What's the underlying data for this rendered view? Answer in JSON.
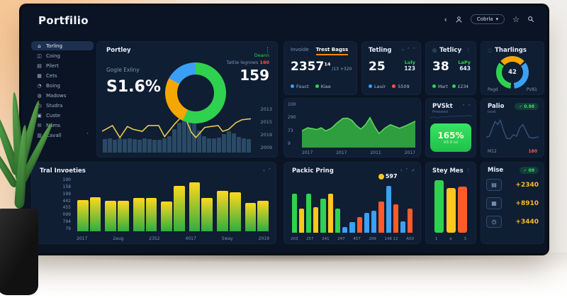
{
  "palette": {
    "green": "#2fd24e",
    "yellow": "#ffc61c",
    "orange": "#ff5a2b",
    "blue": "#3aa0f5",
    "red": "#ff5148",
    "badge_green": "#2ee05c",
    "line_yellow": "#e8c84d",
    "area_green": "#2e9e3f"
  },
  "header": {
    "title": "Portfilio",
    "back_icon": "‹",
    "dropdown_label": "Cobrla",
    "dropdown_caret": "▾"
  },
  "sidebar": {
    "items": [
      {
        "label": "Torling",
        "glyph": "⌂"
      },
      {
        "label": "Coing",
        "glyph": "◫"
      },
      {
        "label": "Pilert",
        "glyph": "▤"
      },
      {
        "label": "Cets",
        "glyph": "▦"
      },
      {
        "label": "Boing",
        "glyph": "◔"
      },
      {
        "label": "Madows",
        "glyph": "◍"
      },
      {
        "label": "Studra",
        "glyph": "◷"
      },
      {
        "label": "Custe",
        "glyph": "▣"
      },
      {
        "label": "Nams",
        "glyph": "✉"
      },
      {
        "label": "Cavall",
        "glyph": "▥",
        "caret": "˅"
      }
    ]
  },
  "portfolio": {
    "title": "Portley",
    "menu_icon": "⋮",
    "subtitle": "Gogle Exliny",
    "big_value": "S1.6%",
    "tag": "Deann",
    "sub_label": "Tattie legrows ",
    "sub_value": "160",
    "right_value": "159"
  },
  "invoide": {
    "tab_inactive": "Invoide",
    "tab_active": "Trest Bagss",
    "value": "2357",
    "value_sup": "14",
    "value_sub": " /13 +320",
    "legend": [
      {
        "label": "Fouct"
      },
      {
        "label": "Kiae"
      }
    ]
  },
  "tetling": {
    "title": "Tetling",
    "icon1": "‹",
    "icon2": "˅",
    "icon3": "˅",
    "value": "25",
    "tag_label": "Luly",
    "tag_value": "123",
    "legend": [
      {
        "label": "Lauir"
      },
      {
        "label": "5509"
      }
    ]
  },
  "tetlicy": {
    "icon": "◎",
    "title": "Tetlicy",
    "icon1": "‹",
    "icon2": "⋮",
    "value": "38",
    "tag_label": "LaPy",
    "tag_value": "643",
    "legend": [
      {
        "label": "Mart"
      },
      {
        "label": "£234"
      }
    ]
  },
  "tharlings": {
    "icon": "◌",
    "title": "Tharlings",
    "center_value": "42",
    "label_left": "Pegd",
    "label_right": "PV81"
  },
  "pvskt": {
    "title": "PVSkt",
    "subtitle": "Preseed",
    "icon1": "˅",
    "icon2": "˅",
    "badge_value": "165%",
    "badge_sub": "93.0 so"
  },
  "palio": {
    "title": "Palio",
    "subtitle": "lsod",
    "badge_check": "✓",
    "badge_text": "0.98",
    "foot_left": "M12",
    "foot_right": "180"
  },
  "tral": {
    "title": "Tral Invoeties",
    "icon1": "‹",
    "icon2": "˅"
  },
  "packic": {
    "title": "Packic Pring",
    "icon1": "‹",
    "icon2": "˅",
    "icon3": "✓",
    "annotation": "597"
  },
  "stey": {
    "title": "Stey Mes",
    "icon1": "‹",
    "icon2": "⋮"
  },
  "mise": {
    "title": "Mise",
    "badge_check": "✓",
    "badge_text": "09",
    "rows": [
      {
        "icon": "chart-icon",
        "glyph": "▤",
        "value": "+2340"
      },
      {
        "icon": "doc-icon",
        "glyph": "▦",
        "value": "+8910"
      },
      {
        "icon": "clock-icon",
        "glyph": "◷",
        "value": "+3440"
      }
    ]
  },
  "chart_data": [
    {
      "id": "portfolio-donut",
      "type": "pie",
      "title": "Portley allocation donut",
      "segments": [
        {
          "label": "green",
          "color": "#2fd24e",
          "value": 57
        },
        {
          "label": "orange",
          "color": "#f5a600",
          "value": 26
        },
        {
          "label": "blue",
          "color": "#3aa0f5",
          "value": 17
        }
      ]
    },
    {
      "id": "portfolio-bars",
      "type": "bars",
      "title": "Portley volume bars",
      "color": "rgba(66,110,142,0.55)",
      "values": [
        28,
        30,
        27,
        29,
        28,
        30,
        28,
        27,
        29,
        28,
        27,
        26,
        30,
        34,
        48,
        62,
        84,
        95,
        72,
        46,
        34,
        30,
        29,
        31,
        38,
        44,
        40,
        33,
        30,
        28
      ]
    },
    {
      "id": "portfolio-line",
      "type": "line",
      "title": "Portley trend line",
      "color": "#e8c84d",
      "stroke_width": 1.6,
      "points": [
        [
          0,
          44
        ],
        [
          7,
          56
        ],
        [
          12,
          31
        ],
        [
          17,
          54
        ],
        [
          21,
          48
        ],
        [
          27,
          44
        ],
        [
          31,
          56
        ],
        [
          38,
          56
        ],
        [
          42,
          33
        ],
        [
          49,
          60
        ],
        [
          55,
          79
        ],
        [
          60,
          42
        ],
        [
          63,
          31
        ],
        [
          69,
          52
        ],
        [
          73,
          54
        ],
        [
          78,
          56
        ],
        [
          81,
          44
        ],
        [
          85,
          48
        ],
        [
          90,
          62
        ],
        [
          94,
          68
        ],
        [
          100,
          70
        ]
      ],
      "y_ticks": [
        "2013",
        "2015",
        "2019",
        "2009"
      ]
    },
    {
      "id": "mid-area",
      "type": "area",
      "title": "Invoide area chart",
      "fill": "#2e9e3f",
      "stroke": "#5fd45b",
      "stroke_width": 1.6,
      "points": [
        [
          0,
          38
        ],
        [
          5,
          45
        ],
        [
          9,
          43
        ],
        [
          13,
          41
        ],
        [
          17,
          45
        ],
        [
          21,
          38
        ],
        [
          26,
          44
        ],
        [
          31,
          56
        ],
        [
          36,
          66
        ],
        [
          40,
          67
        ],
        [
          44,
          62
        ],
        [
          48,
          50
        ],
        [
          52,
          42
        ],
        [
          56,
          52
        ],
        [
          60,
          68
        ],
        [
          64,
          48
        ],
        [
          68,
          32
        ],
        [
          73,
          44
        ],
        [
          78,
          52
        ],
        [
          82,
          48
        ],
        [
          86,
          44
        ],
        [
          92,
          50
        ],
        [
          100,
          60
        ]
      ],
      "y_ticks": [
        "100",
        "290",
        "73",
        "9"
      ],
      "x_ticks": [
        "2017",
        "2017",
        "2011",
        "2017"
      ]
    },
    {
      "id": "tral-bars",
      "type": "bars",
      "title": "Tral Invoeties bars",
      "gradient": [
        "#2fae3f",
        "#ffd81c"
      ],
      "values": [
        60,
        65,
        58,
        58,
        64,
        64,
        57,
        86,
        93,
        64,
        77,
        74,
        54,
        58
      ],
      "y_ticks": [
        "190",
        "158",
        "199",
        "442",
        "455",
        "099",
        "794",
        "79"
      ],
      "x_ticks": [
        "2017",
        "2aug",
        "2352",
        "4017",
        "5way",
        "2019"
      ]
    },
    {
      "id": "packic-bars",
      "type": "bars",
      "title": "Packic Pring bars",
      "values": [
        {
          "v": 83,
          "c": "#2fd24e"
        },
        {
          "v": 52,
          "c": "#ffc61c"
        },
        {
          "v": 84,
          "c": "#2fd24e"
        },
        {
          "v": 55,
          "c": "#ffc61c"
        },
        {
          "v": 72,
          "c": "#2fd24e"
        },
        {
          "v": 84,
          "c": "#ffc61c"
        },
        {
          "v": 52,
          "c": "#2fd24e"
        },
        {
          "v": 12,
          "c": "#3aa0f5"
        },
        {
          "v": 22,
          "c": "#3aa0f5"
        },
        {
          "v": 34,
          "c": "#ff5a2b"
        },
        {
          "v": 43,
          "c": "#3aa0f5"
        },
        {
          "v": 47,
          "c": "#3aa0f5"
        },
        {
          "v": 66,
          "c": "#ff5a2b"
        },
        {
          "v": 100,
          "c": "#3aa0f5"
        },
        {
          "v": 60,
          "c": "#ff5a2b"
        },
        {
          "v": 25,
          "c": "#3aa0f5"
        },
        {
          "v": 52,
          "c": "#ff5a2b"
        }
      ],
      "x_ticks": [
        "203",
        "257",
        "241",
        "247",
        "457",
        "209",
        "148 12",
        "A50"
      ],
      "annotation": {
        "index": 13,
        "label": "597"
      }
    },
    {
      "id": "stey-bars",
      "type": "bars",
      "title": "Stey Mes bars",
      "values": [
        {
          "v": 100,
          "c": "#2fd24e"
        },
        {
          "v": 85,
          "c": "#ffc61c"
        },
        {
          "v": 88,
          "c": "#ff5a2b"
        }
      ],
      "x_ticks": [
        "1",
        "e",
        "3"
      ]
    },
    {
      "id": "tharlings-gauge",
      "type": "pie",
      "title": "Tharlings gauge",
      "center": "42",
      "segments": [
        {
          "color": "#f5a600",
          "value": 13
        },
        {
          "color": "#0f1e33",
          "value": 2
        },
        {
          "color": "#3aa0f5",
          "value": 33
        },
        {
          "color": "#0f1e33",
          "value": 4
        },
        {
          "color": "#2fd24e",
          "value": 33
        },
        {
          "color": "#0f1e33",
          "value": 2
        },
        {
          "color": "#f5a600",
          "value": 13
        }
      ]
    },
    {
      "id": "palio-line",
      "type": "line",
      "title": "Palio sparkline",
      "color": "#35537d",
      "stroke_width": 1.4,
      "points": [
        [
          0,
          18
        ],
        [
          6,
          22
        ],
        [
          12,
          55
        ],
        [
          17,
          80
        ],
        [
          22,
          68
        ],
        [
          27,
          85
        ],
        [
          33,
          45
        ],
        [
          39,
          14
        ],
        [
          45,
          12
        ],
        [
          52,
          28
        ],
        [
          58,
          22
        ],
        [
          64,
          55
        ],
        [
          70,
          68
        ],
        [
          76,
          42
        ],
        [
          82,
          18
        ],
        [
          90,
          15
        ],
        [
          100,
          20
        ]
      ]
    },
    {
      "id": "pvskt-line",
      "type": "line",
      "title": "PVSkt sparkline",
      "color": "#223a5e",
      "stroke_width": 1.4,
      "points": [
        [
          0,
          30
        ],
        [
          10,
          35
        ],
        [
          20,
          28
        ],
        [
          30,
          40
        ],
        [
          40,
          38
        ],
        [
          50,
          45
        ],
        [
          60,
          40
        ],
        [
          70,
          48
        ],
        [
          80,
          44
        ],
        [
          90,
          50
        ],
        [
          100,
          46
        ]
      ]
    }
  ]
}
